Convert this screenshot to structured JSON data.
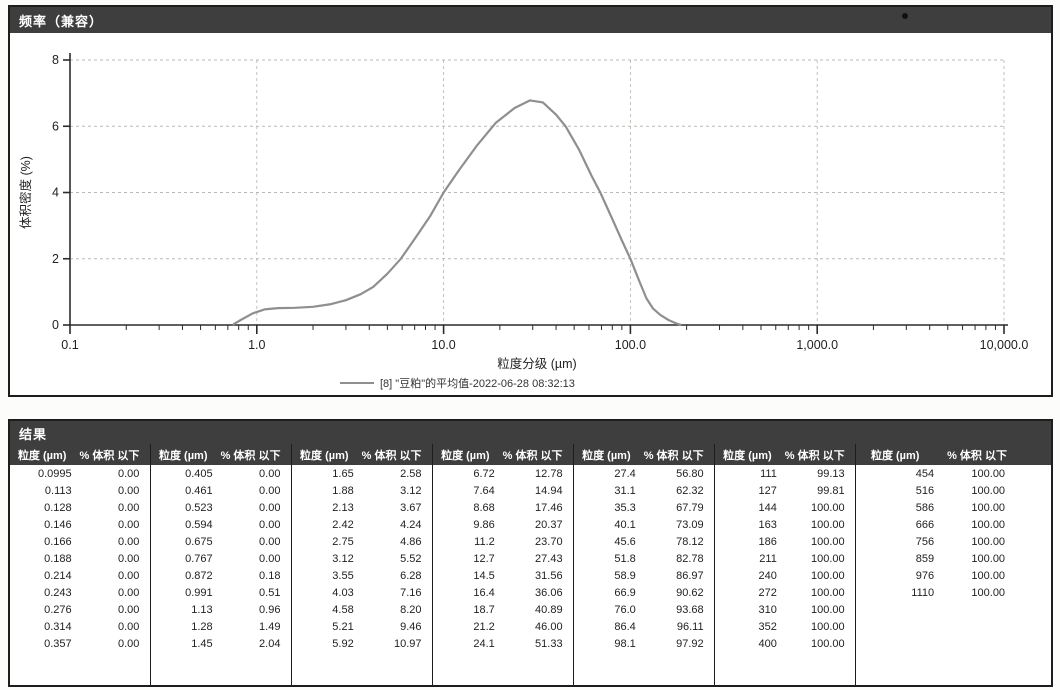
{
  "chart": {
    "title": "频率（兼容）"
  },
  "chart_data": {
    "type": "line",
    "title": "频率（兼容）",
    "xlabel": "粒度分级 (µm)",
    "ylabel": "体积密度 (%)",
    "x_scale": "log",
    "xlim": [
      0.1,
      10000
    ],
    "ylim": [
      0,
      8
    ],
    "x_tick_values": [
      0.1,
      1,
      10,
      100,
      1000,
      10000
    ],
    "x_tick_labels": [
      "0.1",
      "1.0",
      "10.0",
      "100.0",
      "1,000.0",
      "10,000.0"
    ],
    "y_ticks": [
      0,
      2,
      4,
      6,
      8
    ],
    "grid": true,
    "legend_position": "bottom",
    "series": [
      {
        "name": "[8] \"豆粕\"的平均值-2022-06-28 08:32:13",
        "color": "#8f8f8f",
        "x": [
          0.75,
          0.82,
          0.95,
          1.1,
          1.3,
          1.6,
          2.0,
          2.5,
          3.0,
          3.6,
          4.2,
          5.0,
          5.9,
          7.0,
          8.5,
          10,
          12,
          15,
          19,
          24,
          29,
          34,
          40,
          45,
          53,
          62,
          69,
          80,
          90,
          100,
          112,
          122,
          132,
          145,
          160,
          175,
          185
        ],
        "y": [
          0.02,
          0.15,
          0.35,
          0.47,
          0.51,
          0.52,
          0.55,
          0.63,
          0.75,
          0.93,
          1.15,
          1.55,
          2.0,
          2.6,
          3.3,
          4.0,
          4.65,
          5.4,
          6.1,
          6.55,
          6.78,
          6.72,
          6.35,
          6.0,
          5.3,
          4.5,
          4.0,
          3.2,
          2.55,
          2.0,
          1.3,
          0.8,
          0.5,
          0.3,
          0.15,
          0.05,
          0.01
        ]
      }
    ]
  },
  "results": {
    "title": "结果",
    "size_header": "粒度 (µm)",
    "pct_header": "% 体积 以下",
    "groups": [
      {
        "rows": [
          [
            "0.0995",
            "0.00"
          ],
          [
            "0.113",
            "0.00"
          ],
          [
            "0.128",
            "0.00"
          ],
          [
            "0.146",
            "0.00"
          ],
          [
            "0.166",
            "0.00"
          ],
          [
            "0.188",
            "0.00"
          ],
          [
            "0.214",
            "0.00"
          ],
          [
            "0.243",
            "0.00"
          ],
          [
            "0.276",
            "0.00"
          ],
          [
            "0.314",
            "0.00"
          ],
          [
            "0.357",
            "0.00"
          ]
        ]
      },
      {
        "rows": [
          [
            "0.405",
            "0.00"
          ],
          [
            "0.461",
            "0.00"
          ],
          [
            "0.523",
            "0.00"
          ],
          [
            "0.594",
            "0.00"
          ],
          [
            "0.675",
            "0.00"
          ],
          [
            "0.767",
            "0.00"
          ],
          [
            "0.872",
            "0.18"
          ],
          [
            "0.991",
            "0.51"
          ],
          [
            "1.13",
            "0.96"
          ],
          [
            "1.28",
            "1.49"
          ],
          [
            "1.45",
            "2.04"
          ]
        ]
      },
      {
        "rows": [
          [
            "1.65",
            "2.58"
          ],
          [
            "1.88",
            "3.12"
          ],
          [
            "2.13",
            "3.67"
          ],
          [
            "2.42",
            "4.24"
          ],
          [
            "2.75",
            "4.86"
          ],
          [
            "3.12",
            "5.52"
          ],
          [
            "3.55",
            "6.28"
          ],
          [
            "4.03",
            "7.16"
          ],
          [
            "4.58",
            "8.20"
          ],
          [
            "5.21",
            "9.46"
          ],
          [
            "5.92",
            "10.97"
          ]
        ]
      },
      {
        "rows": [
          [
            "6.72",
            "12.78"
          ],
          [
            "7.64",
            "14.94"
          ],
          [
            "8.68",
            "17.46"
          ],
          [
            "9.86",
            "20.37"
          ],
          [
            "11.2",
            "23.70"
          ],
          [
            "12.7",
            "27.43"
          ],
          [
            "14.5",
            "31.56"
          ],
          [
            "16.4",
            "36.06"
          ],
          [
            "18.7",
            "40.89"
          ],
          [
            "21.2",
            "46.00"
          ],
          [
            "24.1",
            "51.33"
          ]
        ]
      },
      {
        "rows": [
          [
            "27.4",
            "56.80"
          ],
          [
            "31.1",
            "62.32"
          ],
          [
            "35.3",
            "67.79"
          ],
          [
            "40.1",
            "73.09"
          ],
          [
            "45.6",
            "78.12"
          ],
          [
            "51.8",
            "82.78"
          ],
          [
            "58.9",
            "86.97"
          ],
          [
            "66.9",
            "90.62"
          ],
          [
            "76.0",
            "93.68"
          ],
          [
            "86.4",
            "96.11"
          ],
          [
            "98.1",
            "97.92"
          ]
        ]
      },
      {
        "rows": [
          [
            "111",
            "99.13"
          ],
          [
            "127",
            "99.81"
          ],
          [
            "144",
            "100.00"
          ],
          [
            "163",
            "100.00"
          ],
          [
            "186",
            "100.00"
          ],
          [
            "211",
            "100.00"
          ],
          [
            "240",
            "100.00"
          ],
          [
            "272",
            "100.00"
          ],
          [
            "310",
            "100.00"
          ],
          [
            "352",
            "100.00"
          ],
          [
            "400",
            "100.00"
          ]
        ]
      },
      {
        "rows": [
          [
            "454",
            "100.00"
          ],
          [
            "516",
            "100.00"
          ],
          [
            "586",
            "100.00"
          ],
          [
            "666",
            "100.00"
          ],
          [
            "756",
            "100.00"
          ],
          [
            "859",
            "100.00"
          ],
          [
            "976",
            "100.00"
          ],
          [
            "1110",
            "100.00"
          ]
        ]
      }
    ]
  }
}
